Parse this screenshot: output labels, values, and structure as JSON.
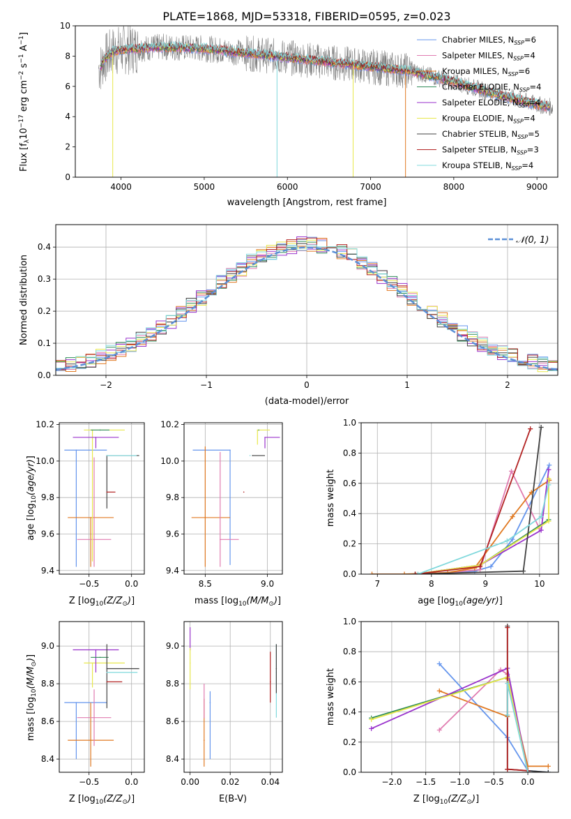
{
  "colors": {
    "Chabrier MILES": "#6495ed",
    "Salpeter MILES": "#e07bb0",
    "Kroupa MILES": "#e07820",
    "Chabrier ELODIE": "#2e8b57",
    "Salpeter ELODIE": "#9932cc",
    "Kroupa ELODIE": "#e8e84a",
    "Chabrier STELIB": "#404040",
    "Salpeter STELIB": "#b22222",
    "Kroupa STELIB": "#7fd8dc",
    "normal_curve": "#5b8fd6"
  },
  "chart_data": [
    {
      "id": "spectrum",
      "type": "line",
      "title": "PLATE=1868, MJD=53318, FIBERID=0595, z=0.023",
      "xlabel": "wavelength [Angstrom, rest frame]",
      "ylabel_parts": [
        "Flux [f",
        "λ",
        "10",
        "−17",
        " erg cm",
        "−2",
        " s",
        "−1",
        " A",
        "−1",
        "]"
      ],
      "xlim": [
        3450,
        9250
      ],
      "ylim": [
        0,
        10
      ],
      "xticks": [
        "4000",
        "5000",
        "6000",
        "7000",
        "8000",
        "9000"
      ],
      "yticks": [
        "0",
        "2",
        "4",
        "6",
        "8",
        "10"
      ],
      "grid": false,
      "legend_position": "top-right",
      "legend": [
        {
          "name": "Chabrier MILES",
          "n": "6"
        },
        {
          "name": "Salpeter MILES",
          "n": "4"
        },
        {
          "name": "Kroupa MILES",
          "n": "6"
        },
        {
          "name": "Chabrier ELODIE",
          "n": "4"
        },
        {
          "name": "Salpeter ELODIE",
          "n": "4"
        },
        {
          "name": "Kroupa ELODIE",
          "n": "4"
        },
        {
          "name": "Chabrier STELIB",
          "n": "5"
        },
        {
          "name": "Salpeter STELIB",
          "n": "3"
        },
        {
          "name": "Kroupa STELIB",
          "n": "4"
        }
      ],
      "legend_nssp_prefix": "N",
      "legend_nssp_sub": "SSP",
      "continuum": [
        [
          3750,
          7.2
        ],
        [
          3800,
          7.8
        ],
        [
          3900,
          8.3
        ],
        [
          4000,
          8.4
        ],
        [
          4200,
          8.5
        ],
        [
          4500,
          8.6
        ],
        [
          5000,
          8.5
        ],
        [
          5500,
          8.2
        ],
        [
          6000,
          7.9
        ],
        [
          6500,
          7.6
        ],
        [
          7000,
          7.3
        ],
        [
          7500,
          7.0
        ],
        [
          8000,
          6.3
        ],
        [
          8500,
          5.5
        ],
        [
          9000,
          4.8
        ],
        [
          9200,
          4.6
        ]
      ]
    },
    {
      "id": "residuals",
      "type": "histogram",
      "xlabel": "(data-model)/error",
      "ylabel": "Normed distribution",
      "xlim": [
        -2.5,
        2.5
      ],
      "ylim": [
        0,
        0.47
      ],
      "xticks": [
        "−2",
        "−1",
        "0",
        "1",
        "2"
      ],
      "yticks": [
        "0.0",
        "0.1",
        "0.2",
        "0.3",
        "0.4"
      ],
      "grid": true,
      "bin_width": 0.1,
      "legend": [
        {
          "name": "N(0,1)",
          "label": "𝒩(0, 1)",
          "style": "dashed"
        }
      ],
      "legend_position": "top-right"
    },
    {
      "id": "age_vs_Z",
      "type": "errorbar",
      "xlabel": "Z [log10(Z/Z⊙)]",
      "ylabel": "age  [log10(age/yr)]",
      "xlim": [
        -0.85,
        0.15
      ],
      "ylim": [
        9.38,
        10.21
      ],
      "xticks": [
        "−0.5",
        "0.0"
      ],
      "yticks": [
        "9.4",
        "9.6",
        "9.8",
        "10.0",
        "10.2"
      ],
      "grid": true,
      "points": [
        {
          "series": "Chabrier MILES",
          "x": -0.65,
          "xerr": [
            0.14,
            0.36
          ],
          "y": 10.06,
          "yerr": [
            0.64,
            0.0
          ]
        },
        {
          "series": "Kroupa MILES",
          "x": -0.48,
          "xerr": [
            0.27,
            0.27
          ],
          "y": 9.69,
          "yerr": [
            0.27,
            0.0
          ]
        },
        {
          "series": "Salpeter MILES",
          "x": -0.44,
          "xerr": [
            0.2,
            0.2
          ],
          "y": 9.57,
          "yerr": [
            0.15,
            0.45
          ]
        },
        {
          "series": "Kroupa ELODIE",
          "x": -0.46,
          "xerr": [
            0.1,
            0.38
          ],
          "y": 10.17,
          "yerr": [
            0.72,
            0.0
          ]
        },
        {
          "series": "Salpeter ELODIE",
          "x": -0.42,
          "xerr": [
            0.27,
            0.27
          ],
          "y": 10.13,
          "yerr": [
            0.06,
            0.0
          ]
        },
        {
          "series": "Chabrier ELODIE",
          "x": -0.37,
          "xerr": [
            0.11,
            0.11
          ],
          "y": 10.17,
          "yerr": [
            0.0,
            0.0
          ]
        },
        {
          "series": "Chabrier STELIB",
          "x": -0.29,
          "xerr": [
            0.0,
            0.38
          ],
          "y": 10.03,
          "yerr": [
            0.29,
            0.0
          ]
        },
        {
          "series": "Kroupa STELIB",
          "x": -0.29,
          "xerr": [
            0.0,
            0.35
          ],
          "y": 10.03,
          "yerr": [
            0.0,
            0.0
          ]
        },
        {
          "series": "Salpeter STELIB",
          "x": -0.29,
          "xerr": [
            0.0,
            0.1
          ],
          "y": 9.83,
          "yerr": [
            0.0,
            0.0
          ]
        }
      ]
    },
    {
      "id": "age_vs_mass",
      "type": "errorbar",
      "xlabel": "mass [log10(M/M⊙)]",
      "ylabel": "",
      "xlim": [
        8.33,
        9.12
      ],
      "ylim": [
        9.38,
        10.21
      ],
      "xticks": [
        "8.5",
        "9.0"
      ],
      "yticks": [
        "9.4",
        "9.6",
        "9.8",
        "10.0",
        "10.2"
      ],
      "grid": true,
      "points": [
        {
          "series": "Chabrier MILES",
          "x": 8.7,
          "xerr": [
            0.3,
            0.0
          ],
          "y": 10.06,
          "yerr": [
            0.63,
            0.0
          ]
        },
        {
          "series": "Kroupa MILES",
          "x": 8.5,
          "xerr": [
            0.11,
            0.2
          ],
          "y": 9.69,
          "yerr": [
            0.27,
            0.39
          ]
        },
        {
          "series": "Salpeter MILES",
          "x": 8.62,
          "xerr": [
            0.0,
            0.15
          ],
          "y": 9.57,
          "yerr": [
            0.15,
            0.48
          ]
        },
        {
          "series": "Kroupa ELODIE",
          "x": 8.92,
          "xerr": [
            0.0,
            0.1
          ],
          "y": 10.17,
          "yerr": [
            0.08,
            0.0
          ]
        },
        {
          "series": "Salpeter ELODIE",
          "x": 8.98,
          "xerr": [
            0.0,
            0.12
          ],
          "y": 10.13,
          "yerr": [
            0.06,
            0.0
          ]
        },
        {
          "series": "Chabrier ELODIE",
          "x": 8.93,
          "xerr": [
            0.0,
            0.0
          ],
          "y": 10.17,
          "yerr": [
            0.0,
            0.0
          ]
        },
        {
          "series": "Chabrier STELIB",
          "x": 8.88,
          "xerr": [
            0.0,
            0.1
          ],
          "y": 10.03,
          "yerr": [
            0.0,
            0.0
          ]
        },
        {
          "series": "Kroupa STELIB",
          "x": 8.86,
          "xerr": [
            0.0,
            0.0
          ],
          "y": 10.03,
          "yerr": [
            0.0,
            0.0
          ]
        },
        {
          "series": "Salpeter STELIB",
          "x": 8.81,
          "xerr": [
            0.0,
            0.0
          ],
          "y": 9.83,
          "yerr": [
            0.0,
            0.0
          ]
        }
      ]
    },
    {
      "id": "weight_vs_age",
      "type": "line",
      "xlabel": "age  [log10(age/yr)]",
      "ylabel": "mass weight",
      "xlim": [
        6.7,
        10.35
      ],
      "ylim": [
        0,
        1
      ],
      "xticks": [
        "7",
        "8",
        "9",
        "10"
      ],
      "yticks": [
        "0.0",
        "0.2",
        "0.4",
        "0.6",
        "0.8",
        "1.0"
      ],
      "grid": true,
      "series": [
        {
          "name": "Chabrier MILES",
          "points": [
            [
              7.7,
              0.0
            ],
            [
              8.8,
              0.02
            ],
            [
              9.1,
              0.05
            ],
            [
              9.5,
              0.23
            ],
            [
              10.18,
              0.72
            ]
          ]
        },
        {
          "name": "Salpeter MILES",
          "points": [
            [
              8.0,
              0.0
            ],
            [
              8.9,
              0.03
            ],
            [
              9.48,
              0.68
            ],
            [
              10.0,
              0.3
            ]
          ]
        },
        {
          "name": "Kroupa MILES",
          "points": [
            [
              6.9,
              0.0
            ],
            [
              7.5,
              0.0
            ],
            [
              8.3,
              0.01
            ],
            [
              8.8,
              0.04
            ],
            [
              9.5,
              0.38
            ],
            [
              9.85,
              0.54
            ],
            [
              10.18,
              0.62
            ]
          ]
        },
        {
          "name": "Chabrier ELODIE",
          "points": [
            [
              7.7,
              0.0
            ],
            [
              8.9,
              0.06
            ],
            [
              10.17,
              0.36
            ]
          ]
        },
        {
          "name": "Salpeter ELODIE",
          "points": [
            [
              7.7,
              0.0
            ],
            [
              8.9,
              0.06
            ],
            [
              10.03,
              0.29
            ],
            [
              10.17,
              0.69
            ]
          ]
        },
        {
          "name": "Kroupa ELODIE",
          "points": [
            [
              7.7,
              0.0
            ],
            [
              8.9,
              0.06
            ],
            [
              10.17,
              0.35
            ],
            [
              10.17,
              0.63
            ]
          ]
        },
        {
          "name": "Chabrier STELIB",
          "points": [
            [
              7.7,
              0.0
            ],
            [
              9.7,
              0.02
            ],
            [
              10.03,
              0.97
            ]
          ]
        },
        {
          "name": "Salpeter STELIB",
          "points": [
            [
              7.7,
              0.0
            ],
            [
              8.9,
              0.05
            ],
            [
              9.83,
              0.96
            ]
          ]
        },
        {
          "name": "Kroupa STELIB",
          "points": [
            [
              7.75,
              0.0
            ],
            [
              9.4,
              0.22
            ],
            [
              10.03,
              0.38
            ],
            [
              10.17,
              0.59
            ]
          ]
        }
      ]
    },
    {
      "id": "mass_vs_Z",
      "type": "errorbar",
      "xlabel": "Z [log10(Z/Z⊙)]",
      "ylabel": "mass [log10(M/M⊙)]",
      "xlim": [
        -0.85,
        0.15
      ],
      "ylim": [
        8.33,
        9.13
      ],
      "xticks": [
        "−0.5",
        "0.0"
      ],
      "yticks": [
        "8.4",
        "8.6",
        "8.8",
        "9.0"
      ],
      "grid": true,
      "points": [
        {
          "series": "Chabrier MILES",
          "x": -0.65,
          "xerr": [
            0.14,
            0.36
          ],
          "y": 8.7,
          "yerr": [
            0.3,
            0.0
          ]
        },
        {
          "series": "Kroupa MILES",
          "x": -0.48,
          "xerr": [
            0.27,
            0.27
          ],
          "y": 8.5,
          "yerr": [
            0.14,
            0.2
          ]
        },
        {
          "series": "Salpeter MILES",
          "x": -0.44,
          "xerr": [
            0.2,
            0.2
          ],
          "y": 8.62,
          "yerr": [
            0.15,
            0.15
          ]
        },
        {
          "series": "Kroupa ELODIE",
          "x": -0.46,
          "xerr": [
            0.1,
            0.38
          ],
          "y": 8.91,
          "yerr": [
            0.13,
            0.0
          ]
        },
        {
          "series": "Salpeter ELODIE",
          "x": -0.42,
          "xerr": [
            0.27,
            0.27
          ],
          "y": 8.98,
          "yerr": [
            0.12,
            0.0
          ]
        },
        {
          "series": "Chabrier ELODIE",
          "x": -0.37,
          "xerr": [
            0.11,
            0.1
          ],
          "y": 8.94,
          "yerr": [
            0.0,
            0.0
          ]
        },
        {
          "series": "Chabrier STELIB",
          "x": -0.29,
          "xerr": [
            0.0,
            0.38
          ],
          "y": 8.88,
          "yerr": [
            0.21,
            0.13
          ]
        },
        {
          "series": "Kroupa STELIB",
          "x": -0.29,
          "xerr": [
            0.0,
            0.36
          ],
          "y": 8.86,
          "yerr": [
            0.0,
            0.0
          ]
        },
        {
          "series": "Salpeter STELIB",
          "x": -0.29,
          "xerr": [
            0.0,
            0.18
          ],
          "y": 8.81,
          "yerr": [
            0.0,
            0.0
          ]
        }
      ]
    },
    {
      "id": "mass_vs_EBV",
      "type": "errorbar",
      "xlabel": "E(B-V)",
      "ylabel": "",
      "xlim": [
        -0.003,
        0.046
      ],
      "ylim": [
        8.33,
        9.13
      ],
      "xticks": [
        "0.00",
        "0.02",
        "0.04"
      ],
      "yticks": [
        "8.4",
        "8.6",
        "8.8",
        "9.0"
      ],
      "grid": true,
      "points": [
        {
          "series": "Chabrier MILES",
          "x": 0.01,
          "y": 8.7,
          "yerr": [
            0.3,
            0.06
          ]
        },
        {
          "series": "Kroupa MILES",
          "x": 0.007,
          "y": 8.5,
          "yerr": [
            0.14,
            0.22
          ]
        },
        {
          "series": "Salpeter MILES",
          "x": 0.007,
          "y": 8.62,
          "yerr": [
            0.0,
            0.18
          ]
        },
        {
          "series": "Salpeter ELODIE",
          "x": 0.0,
          "y": 8.98,
          "yerr": [
            0.0,
            0.12
          ]
        },
        {
          "series": "Kroupa ELODIE",
          "x": 0.0,
          "y": 8.91,
          "yerr": [
            0.14,
            0.08
          ]
        },
        {
          "series": "Salpeter STELIB",
          "x": 0.04,
          "y": 8.81,
          "yerr": [
            0.11,
            0.16
          ]
        },
        {
          "series": "Kroupa STELIB",
          "x": 0.043,
          "y": 8.86,
          "yerr": [
            0.24,
            0.15
          ]
        },
        {
          "series": "Chabrier STELIB",
          "x": 0.043,
          "y": 8.88,
          "yerr": [
            0.13,
            0.13
          ]
        }
      ]
    },
    {
      "id": "weight_vs_Z",
      "type": "line",
      "xlabel": "Z [log10(Z/Z⊙)]",
      "ylabel": "mass weight",
      "xlim": [
        -2.45,
        0.45
      ],
      "ylim": [
        0,
        1
      ],
      "xticks": [
        "−2.0",
        "−1.5",
        "−1.0",
        "−0.5",
        "0.0"
      ],
      "yticks": [
        "0.0",
        "0.2",
        "0.4",
        "0.6",
        "0.8",
        "1.0"
      ],
      "grid": true,
      "series": [
        {
          "name": "Chabrier MILES",
          "points": [
            [
              -1.3,
              0.72
            ],
            [
              -0.3,
              0.23
            ],
            [
              0.0,
              0.01
            ],
            [
              0.3,
              0.0
            ]
          ]
        },
        {
          "name": "Kroupa MILES",
          "points": [
            [
              -1.3,
              0.54
            ],
            [
              -0.3,
              0.37
            ],
            [
              -0.3,
              0.62
            ],
            [
              0.0,
              0.04
            ],
            [
              0.3,
              0.04
            ]
          ]
        },
        {
          "name": "Salpeter MILES",
          "points": [
            [
              -1.3,
              0.28
            ],
            [
              -0.4,
              0.68
            ],
            [
              -0.3,
              0.65
            ],
            [
              0.0,
              0.0
            ]
          ]
        },
        {
          "name": "Chabrier ELODIE",
          "points": [
            [
              -2.3,
              0.36
            ],
            [
              -0.3,
              0.63
            ],
            [
              0.0,
              0.0
            ]
          ]
        },
        {
          "name": "Salpeter ELODIE",
          "points": [
            [
              -2.3,
              0.29
            ],
            [
              -0.3,
              0.69
            ],
            [
              0.0,
              0.0
            ]
          ]
        },
        {
          "name": "Kroupa ELODIE",
          "points": [
            [
              -2.3,
              0.35
            ],
            [
              -0.3,
              0.63
            ],
            [
              0.0,
              0.0
            ]
          ]
        },
        {
          "name": "Chabrier STELIB",
          "points": [
            [
              -0.3,
              0.97
            ],
            [
              -0.3,
              0.02
            ],
            [
              0.3,
              0.0
            ]
          ]
        },
        {
          "name": "Salpeter STELIB",
          "points": [
            [
              -0.3,
              0.96
            ],
            [
              -0.3,
              0.02
            ],
            [
              0.0,
              0.01
            ]
          ]
        },
        {
          "name": "Kroupa STELIB",
          "points": [
            [
              -0.3,
              0.38
            ],
            [
              -0.3,
              0.59
            ],
            [
              0.0,
              0.0
            ]
          ]
        }
      ]
    }
  ]
}
